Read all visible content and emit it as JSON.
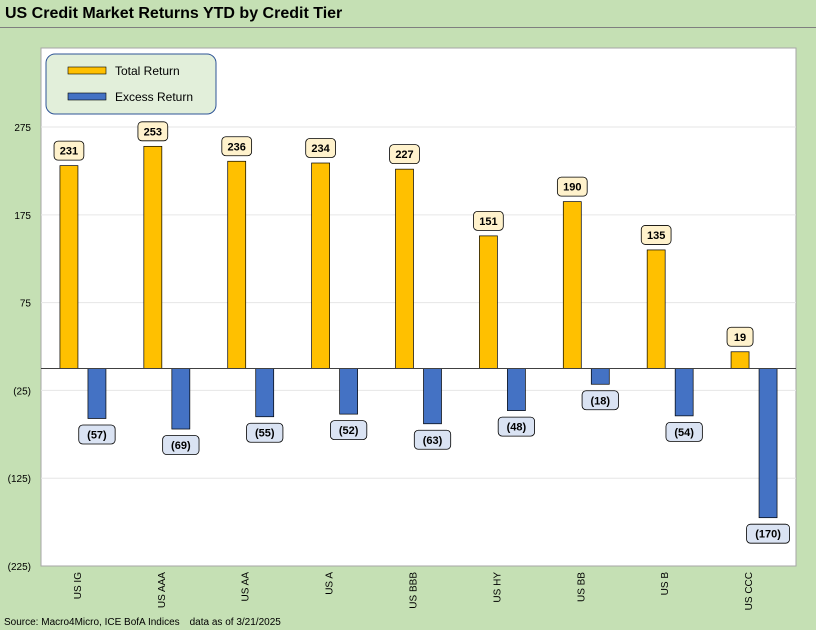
{
  "title": "US Credit Market Returns YTD by Credit Tier",
  "source": "Source: Macro4Micro, ICE BofA Indices",
  "as_of": "data as of 3/21/2025",
  "colors": {
    "total_return": "#ffc000",
    "excess_return": "#4472c4",
    "total_label_bg": "#fff2cc",
    "excess_label_bg": "#dae3f3",
    "legend_bg": "#e2efda",
    "background": "#c5e0b4",
    "plot_bg": "#ffffff"
  },
  "chart_data": {
    "type": "bar",
    "title": "US Credit Market Returns YTD by Credit Tier",
    "categories": [
      "US IG",
      "US AAA",
      "US AA",
      "US A",
      "US BBB",
      "US HY",
      "US BB",
      "US B",
      "US CCC"
    ],
    "series": [
      {
        "name": "Total Return",
        "values": [
          231,
          253,
          236,
          234,
          227,
          151,
          190,
          135,
          19
        ]
      },
      {
        "name": "Excess Return",
        "values": [
          -57,
          -69,
          -55,
          -52,
          -63,
          -48,
          -18,
          -54,
          -170
        ]
      }
    ],
    "data_labels": {
      "Total Return": [
        "231",
        "253",
        "236",
        "234",
        "227",
        "151",
        "190",
        "135",
        "19"
      ],
      "Excess Return": [
        "(57)",
        "(69)",
        "(55)",
        "(52)",
        "(63)",
        "(48)",
        "(18)",
        "(54)",
        "(170)"
      ]
    },
    "yticks": [
      275,
      175,
      75,
      -25,
      -125,
      -225
    ],
    "ytick_labels": [
      "275",
      "175",
      "75",
      "(25)",
      "(125)",
      "(225)"
    ],
    "ylim": [
      -225,
      365
    ],
    "legend_position": "top-left",
    "grid": true
  }
}
